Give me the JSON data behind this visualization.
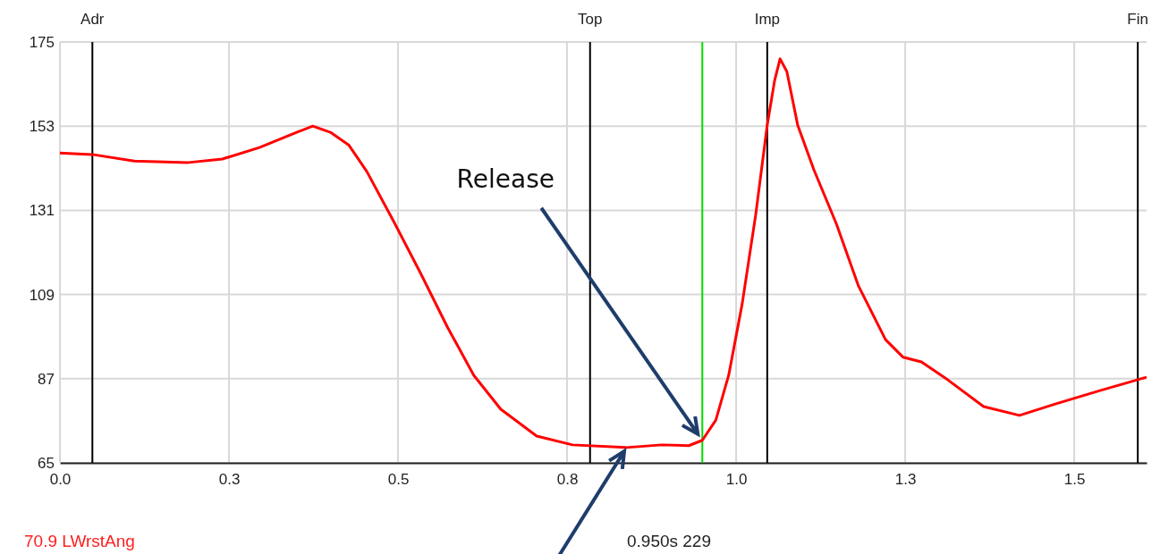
{
  "chart_data": {
    "type": "line",
    "x": [
      0,
      0.048,
      0.11,
      0.19,
      0.24,
      0.295,
      0.35,
      0.374,
      0.4,
      0.427,
      0.454,
      0.493,
      0.533,
      0.573,
      0.612,
      0.652,
      0.705,
      0.758,
      0.837,
      0.89,
      0.93,
      0.95,
      0.97,
      0.989,
      1.009,
      1.029,
      1.046,
      1.057,
      1.065,
      1.075,
      1.091,
      1.115,
      1.148,
      1.181,
      1.221,
      1.247,
      1.274,
      1.313,
      1.366,
      1.419,
      1.472,
      1.538,
      1.607
    ],
    "series": [
      {
        "color": "#ff0000",
        "values": [
          146.0,
          145.6,
          143.9,
          143.5,
          144.4,
          147.4,
          151.4,
          153.0,
          151.4,
          148.1,
          141.1,
          128.3,
          114.7,
          100.5,
          87.9,
          79.0,
          72.0,
          69.7,
          69.0,
          69.7,
          69.5,
          70.9,
          76.2,
          87.9,
          106.6,
          129.9,
          153.3,
          165.0,
          170.6,
          167.3,
          153.3,
          141.6,
          127.6,
          111.2,
          97.2,
          92.6,
          91.4,
          86.7,
          79.7,
          77.4,
          80.4,
          83.9,
          87.4
        ]
      }
    ],
    "xlim": [
      0,
      1.607
    ],
    "xticks": [
      {
        "value": 0,
        "label": "0.0"
      },
      {
        "value": 0.25,
        "label": "0.3"
      },
      {
        "value": 0.5,
        "label": "0.5"
      },
      {
        "value": 0.75,
        "label": "0.8"
      },
      {
        "value": 1.0,
        "label": "1.0"
      },
      {
        "value": 1.25,
        "label": "1.3"
      },
      {
        "value": 1.5,
        "label": "1.5"
      }
    ],
    "ylim": [
      65,
      175
    ],
    "yticks": [
      65,
      87,
      109,
      131,
      153,
      175
    ],
    "grid": true,
    "marker": "none",
    "line_style": "solid",
    "ref_lines": [
      {
        "axis": "x",
        "value": 0.048,
        "label": "Adr",
        "color": "#000000"
      },
      {
        "axis": "x",
        "value": 0.784,
        "label": "Top",
        "color": "#000000"
      },
      {
        "axis": "x",
        "value": 1.046,
        "label": "Imp",
        "color": "#000000"
      },
      {
        "axis": "x",
        "value": 1.594,
        "label": "Fin",
        "color": "#000000"
      },
      {
        "axis": "x",
        "value": 0.95,
        "label": null,
        "color": "#00dd00"
      }
    ],
    "annotations": [
      {
        "text": "Release",
        "x": 0.95,
        "y": 70.9
      },
      "70.9 LWrstAng",
      "0.950s  229"
    ]
  }
}
